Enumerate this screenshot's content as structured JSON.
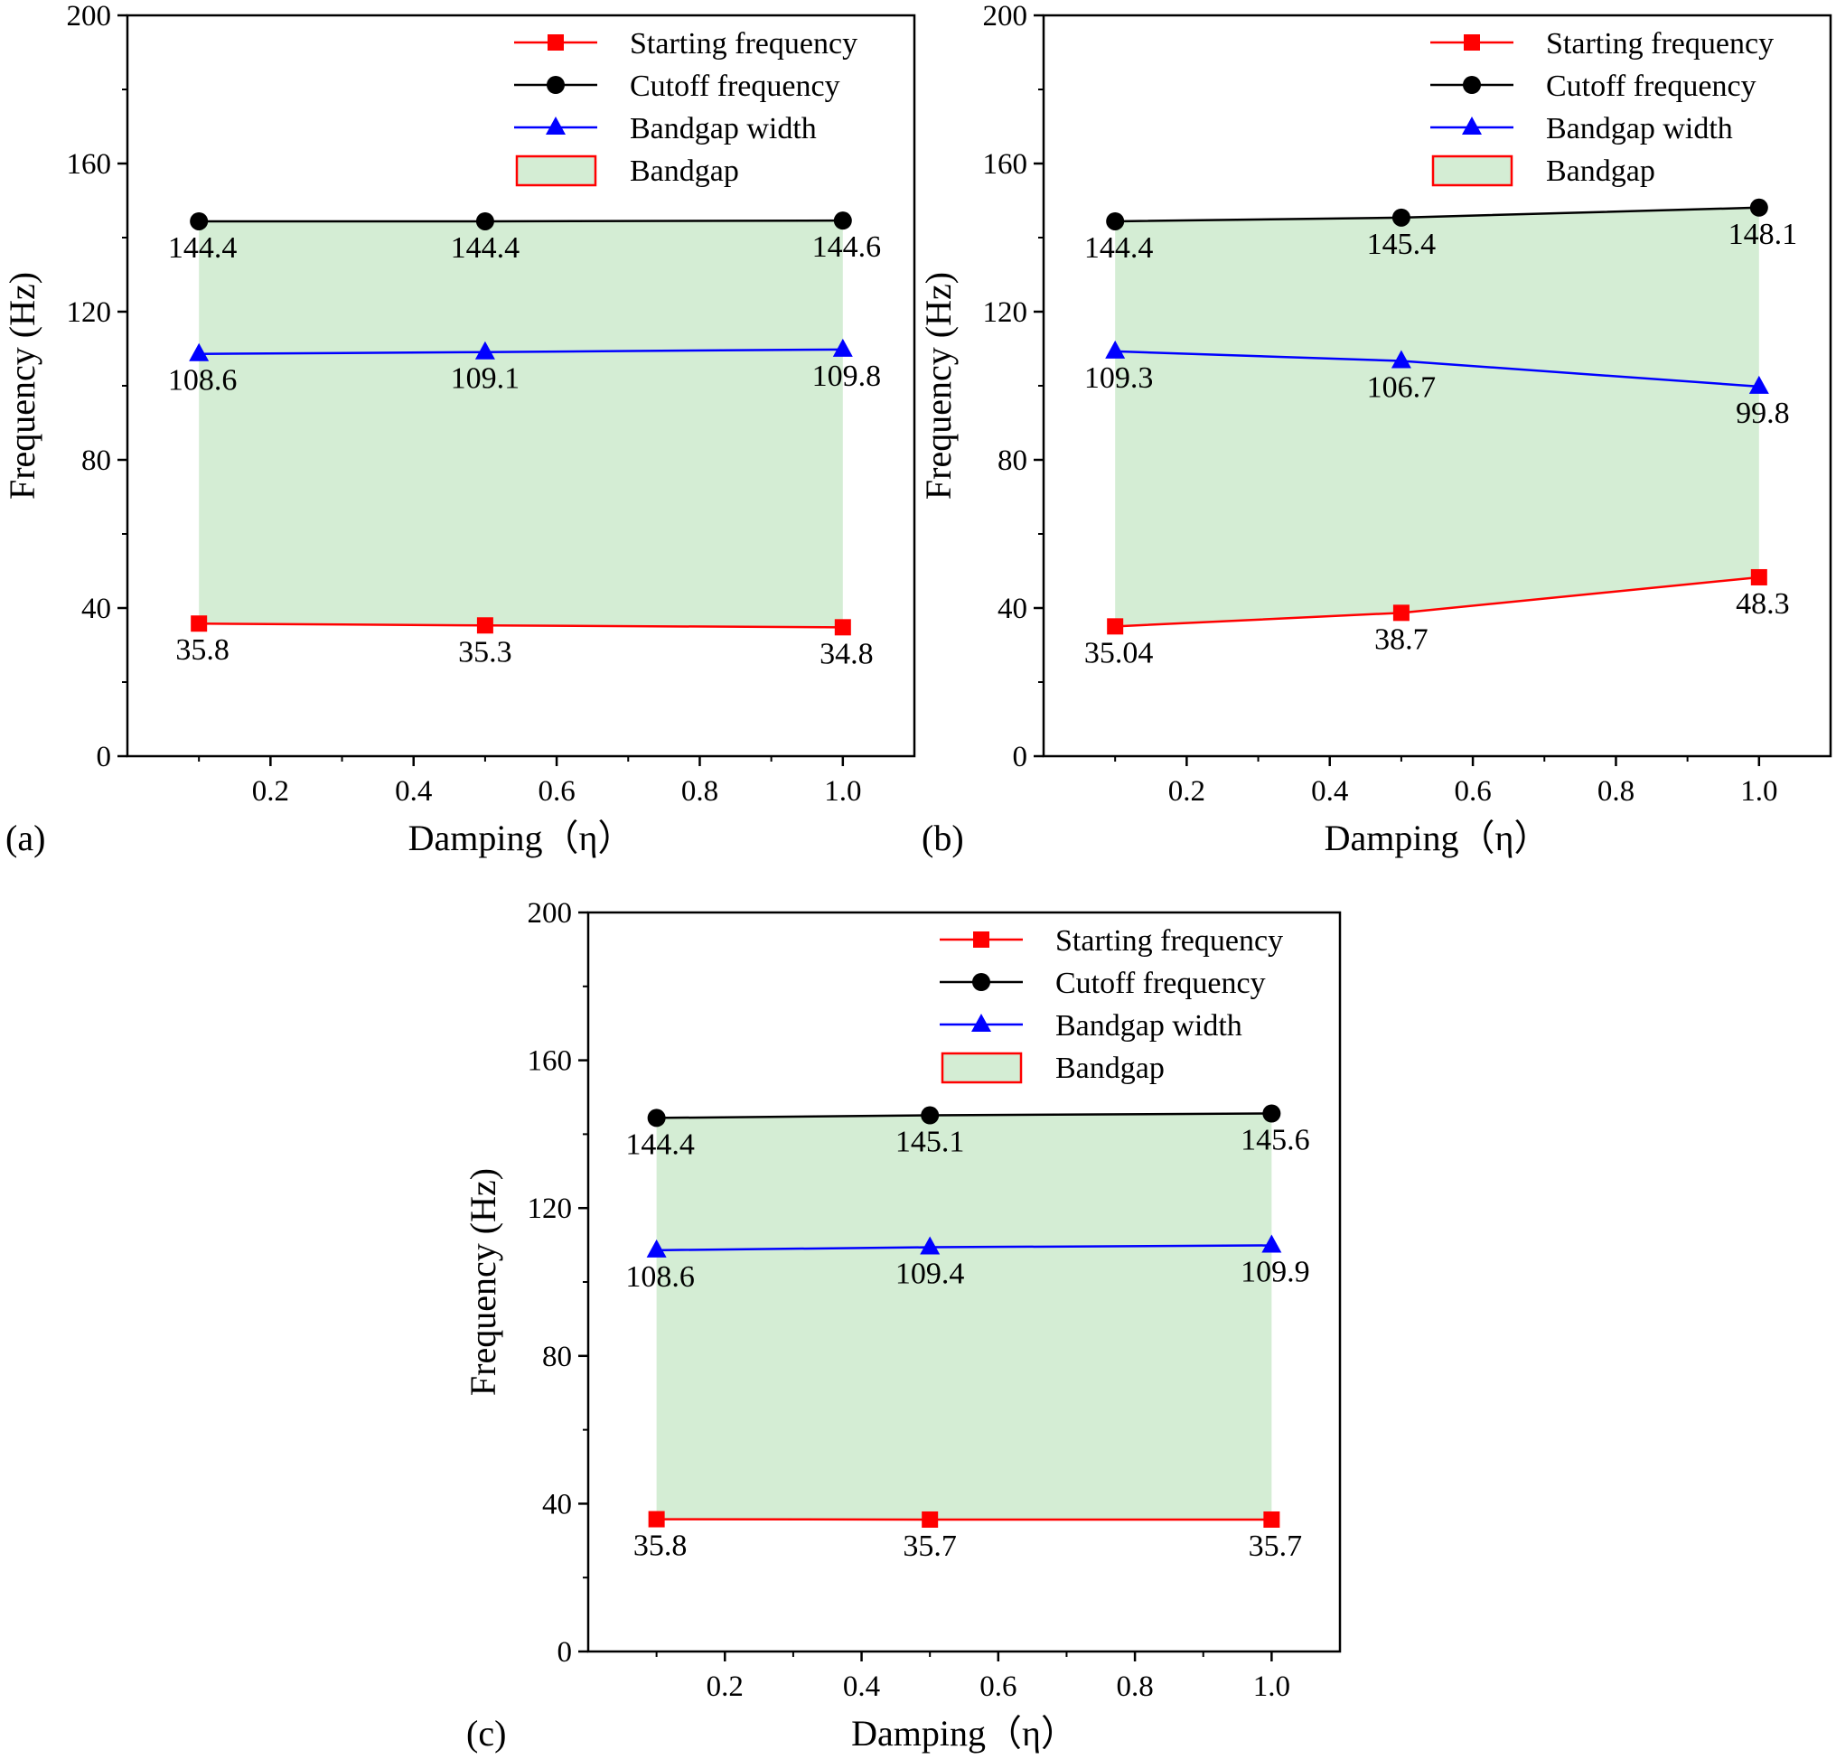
{
  "y_axis_title": "Frequency (Hz)",
  "x_axis_title": "Damping（η）",
  "legend": {
    "starting": "Starting frequency",
    "cutoff": "Cutoff frequency",
    "width": "Bandgap width",
    "bandgap": "Bandgap"
  },
  "colors": {
    "starting": "#ff0000",
    "cutoff": "#000000",
    "width": "#0000ff",
    "bandgap_fill": "#d4edd4",
    "bandgap_border": "#ff0000"
  },
  "chart_data": [
    {
      "type": "line",
      "panel_label": "(a)",
      "x": [
        0.1,
        0.5,
        1.0
      ],
      "xticks": [
        "0.2",
        "0.4",
        "0.6",
        "0.8",
        "1.0"
      ],
      "yticks": [
        "0",
        "40",
        "80",
        "120",
        "160",
        "200"
      ],
      "xlim": [
        0,
        1.1
      ],
      "ylim": [
        0,
        200
      ],
      "xlabel": "Damping（η）",
      "ylabel": "Frequency (Hz)",
      "legend_position": "top-right",
      "series": [
        {
          "name": "Starting frequency",
          "values": [
            35.8,
            35.3,
            34.8
          ],
          "labels": [
            "35.8",
            "35.3",
            "34.8"
          ]
        },
        {
          "name": "Cutoff frequency",
          "values": [
            144.4,
            144.4,
            144.6
          ],
          "labels": [
            "144.4",
            "144.4",
            "144.6"
          ]
        },
        {
          "name": "Bandgap width",
          "values": [
            108.6,
            109.1,
            109.8
          ],
          "labels": [
            "108.6",
            "109.1",
            "109.8"
          ]
        }
      ]
    },
    {
      "type": "line",
      "panel_label": "(b)",
      "x": [
        0.1,
        0.5,
        1.0
      ],
      "xticks": [
        "0.2",
        "0.4",
        "0.6",
        "0.8",
        "1.0"
      ],
      "yticks": [
        "0",
        "40",
        "80",
        "120",
        "160",
        "200"
      ],
      "xlim": [
        0,
        1.1
      ],
      "ylim": [
        0,
        200
      ],
      "xlabel": "Damping（η）",
      "ylabel": "Frequency (Hz)",
      "legend_position": "top-right",
      "series": [
        {
          "name": "Starting frequency",
          "values": [
            35.04,
            38.7,
            48.3
          ],
          "labels": [
            "35.04",
            "38.7",
            "48.3"
          ]
        },
        {
          "name": "Cutoff frequency",
          "values": [
            144.4,
            145.4,
            148.1
          ],
          "labels": [
            "144.4",
            "145.4",
            "148.1"
          ]
        },
        {
          "name": "Bandgap width",
          "values": [
            109.3,
            106.7,
            99.8
          ],
          "labels": [
            "109.3",
            "106.7",
            "99.8"
          ]
        }
      ]
    },
    {
      "type": "line",
      "panel_label": "(c)",
      "x": [
        0.1,
        0.5,
        1.0
      ],
      "xticks": [
        "0.2",
        "0.4",
        "0.6",
        "0.8",
        "1.0"
      ],
      "yticks": [
        "0",
        "40",
        "80",
        "120",
        "160",
        "200"
      ],
      "xlim": [
        0,
        1.1
      ],
      "ylim": [
        0,
        200
      ],
      "xlabel": "Damping（η）",
      "ylabel": "Frequency (Hz)",
      "legend_position": "top-right",
      "series": [
        {
          "name": "Starting frequency",
          "values": [
            35.8,
            35.7,
            35.7
          ],
          "labels": [
            "35.8",
            "35.7",
            "35.7"
          ]
        },
        {
          "name": "Cutoff frequency",
          "values": [
            144.4,
            145.1,
            145.6
          ],
          "labels": [
            "144.4",
            "145.1",
            "145.6"
          ]
        },
        {
          "name": "Bandgap width",
          "values": [
            108.6,
            109.4,
            109.9
          ],
          "labels": [
            "108.6",
            "109.4",
            "109.9"
          ]
        }
      ]
    }
  ]
}
